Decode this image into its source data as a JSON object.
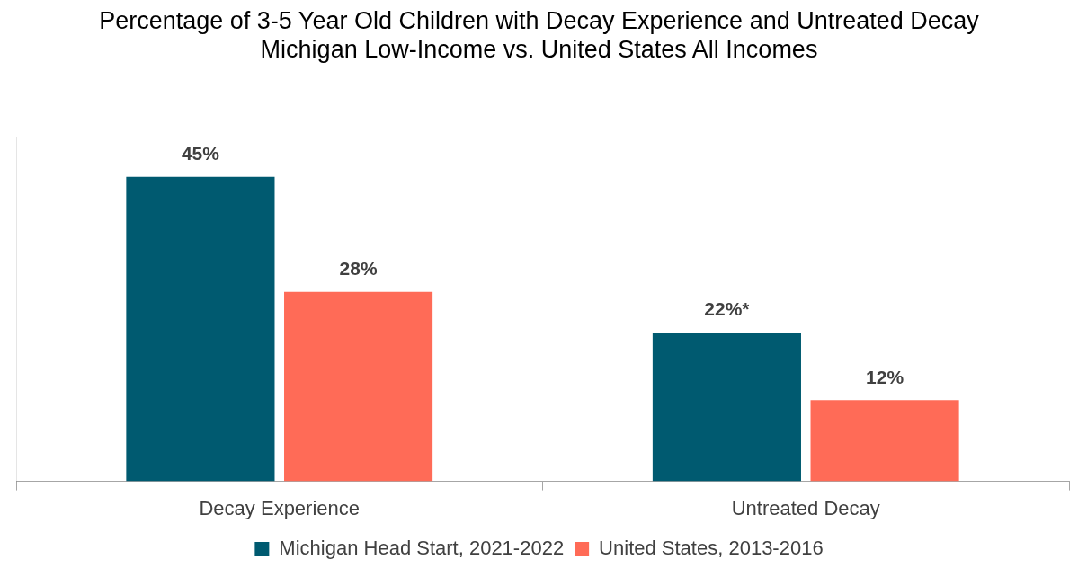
{
  "chart_data": {
    "type": "bar",
    "title": "Percentage of 3-5 Year Old Children with Decay Experience and Untreated Decay",
    "subtitle": "Michigan Low-Income vs. United States All Incomes",
    "categories": [
      "Decay Experience",
      "Untreated Decay"
    ],
    "series": [
      {
        "name": "Michigan Head Start, 2021-2022",
        "color": "#005a70",
        "values": [
          45,
          22
        ],
        "value_labels": [
          "45%",
          "22%*"
        ]
      },
      {
        "name": "United States, 2013-2016",
        "color": "#ff6b57",
        "values": [
          28,
          12
        ],
        "value_labels": [
          "28%",
          "12%"
        ]
      }
    ],
    "relative": false,
    "grid": false,
    "legend": "bottom"
  }
}
